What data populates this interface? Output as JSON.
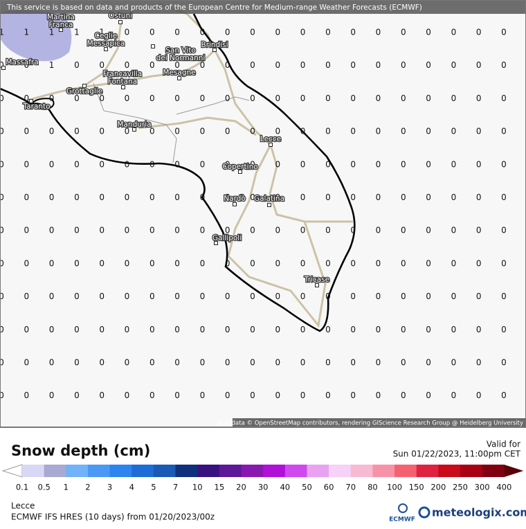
{
  "banner": "This service is based on data and products of the European Centre for Medium-range Weather Forecasts (ECMWF)",
  "attribution": "Map data © OpenStreetMap contributors, rendering GIScience Research Group @ Heidelberg University",
  "cities": [
    {
      "lines": [
        "Martina",
        "Franca"
      ]
    },
    {
      "lines": [
        "Ostuni"
      ]
    },
    {
      "lines": [
        "Ceglie",
        "Messapica"
      ]
    },
    {
      "lines": [
        "San Vito",
        "dei Normanni"
      ]
    },
    {
      "lines": [
        "Brindisi"
      ]
    },
    {
      "lines": [
        "Massafra"
      ]
    },
    {
      "lines": [
        "Francavilla",
        "Fontana"
      ]
    },
    {
      "lines": [
        "Mesagne"
      ]
    },
    {
      "lines": [
        "Grottaglie"
      ]
    },
    {
      "lines": [
        "Taranto"
      ]
    },
    {
      "lines": [
        "Manduria"
      ]
    },
    {
      "lines": [
        "Lecce"
      ]
    },
    {
      "lines": [
        "Copertino"
      ]
    },
    {
      "lines": [
        "Nardò"
      ]
    },
    {
      "lines": [
        "Galatina"
      ]
    },
    {
      "lines": [
        "Gallipoli"
      ]
    },
    {
      "lines": [
        "Tricase"
      ]
    }
  ],
  "grid": {
    "rows": [
      [
        1,
        1,
        1,
        1,
        1,
        0,
        0,
        0,
        0,
        0,
        0,
        0,
        0,
        0,
        0,
        0,
        0,
        0,
        0,
        0,
        0
      ],
      [
        0,
        0,
        1,
        0,
        0,
        0,
        0,
        0,
        0,
        0,
        0,
        0,
        0,
        0,
        0,
        0,
        0,
        0,
        0,
        0,
        0
      ],
      [
        0,
        0,
        0,
        0,
        0,
        0,
        0,
        0,
        0,
        0,
        0,
        0,
        0,
        0,
        0,
        0,
        0,
        0,
        0,
        0,
        0
      ],
      [
        0,
        0,
        0,
        0,
        0,
        0,
        0,
        0,
        0,
        0,
        0,
        0,
        0,
        0,
        0,
        0,
        0,
        0,
        0,
        0,
        0
      ],
      [
        0,
        0,
        0,
        0,
        0,
        0,
        0,
        0,
        0,
        0,
        0,
        0,
        0,
        0,
        0,
        0,
        0,
        0,
        0,
        0,
        0
      ],
      [
        0,
        0,
        0,
        0,
        0,
        0,
        0,
        0,
        0,
        0,
        0,
        0,
        0,
        0,
        0,
        0,
        0,
        0,
        0,
        0,
        0
      ],
      [
        0,
        0,
        0,
        0,
        0,
        0,
        0,
        0,
        0,
        0,
        0,
        0,
        0,
        0,
        0,
        0,
        0,
        0,
        0,
        0,
        0
      ],
      [
        0,
        0,
        0,
        0,
        0,
        0,
        0,
        0,
        0,
        0,
        0,
        0,
        0,
        0,
        0,
        0,
        0,
        0,
        0,
        0,
        0
      ],
      [
        0,
        0,
        0,
        0,
        0,
        0,
        0,
        0,
        0,
        0,
        0,
        0,
        0,
        0,
        0,
        0,
        0,
        0,
        0,
        0,
        0
      ],
      [
        0,
        0,
        0,
        0,
        0,
        0,
        0,
        0,
        0,
        0,
        0,
        0,
        0,
        0,
        0,
        0,
        0,
        0,
        0,
        0,
        0
      ],
      [
        0,
        0,
        0,
        0,
        0,
        0,
        0,
        0,
        0,
        0,
        0,
        0,
        0,
        0,
        0,
        0,
        0,
        0,
        0,
        0,
        0
      ],
      [
        0,
        0,
        0,
        0,
        0,
        0,
        0,
        0,
        0,
        0,
        0,
        0,
        0,
        0,
        0,
        0,
        0,
        0,
        0,
        0,
        0
      ]
    ]
  },
  "legend": {
    "title": "Snow depth (cm)",
    "valid_label": "Valid for",
    "valid_time": "Sun 01/22/2023, 11:00pm CET",
    "ticks": [
      "0.1",
      "0.5",
      "1",
      "2",
      "3",
      "4",
      "5",
      "7",
      "10",
      "15",
      "20",
      "30",
      "40",
      "50",
      "60",
      "70",
      "80",
      "100",
      "150",
      "200",
      "250",
      "300",
      "400"
    ],
    "colors": [
      "#d8d8f6",
      "#a9a9d2",
      "#72b2f8",
      "#4b99f4",
      "#2d84ee",
      "#1e6dd6",
      "#185ab6",
      "#102f7c",
      "#3a1080",
      "#5c1896",
      "#8a18b0",
      "#b010d8",
      "#d048f0",
      "#e9a2f2",
      "#f6d2f8",
      "#f8bad2",
      "#f892a8",
      "#f46272",
      "#e02242",
      "#c80a1a",
      "#a80012",
      "#800012"
    ],
    "under_color": "#ffffff",
    "over_color": "#5a0008"
  },
  "footer": {
    "location": "Lecce",
    "model": "ECMWF IFS HRES (10 days) from 01/20/2023/00z",
    "logo_left": "ECMWF",
    "logo_right": "meteologix.com"
  }
}
